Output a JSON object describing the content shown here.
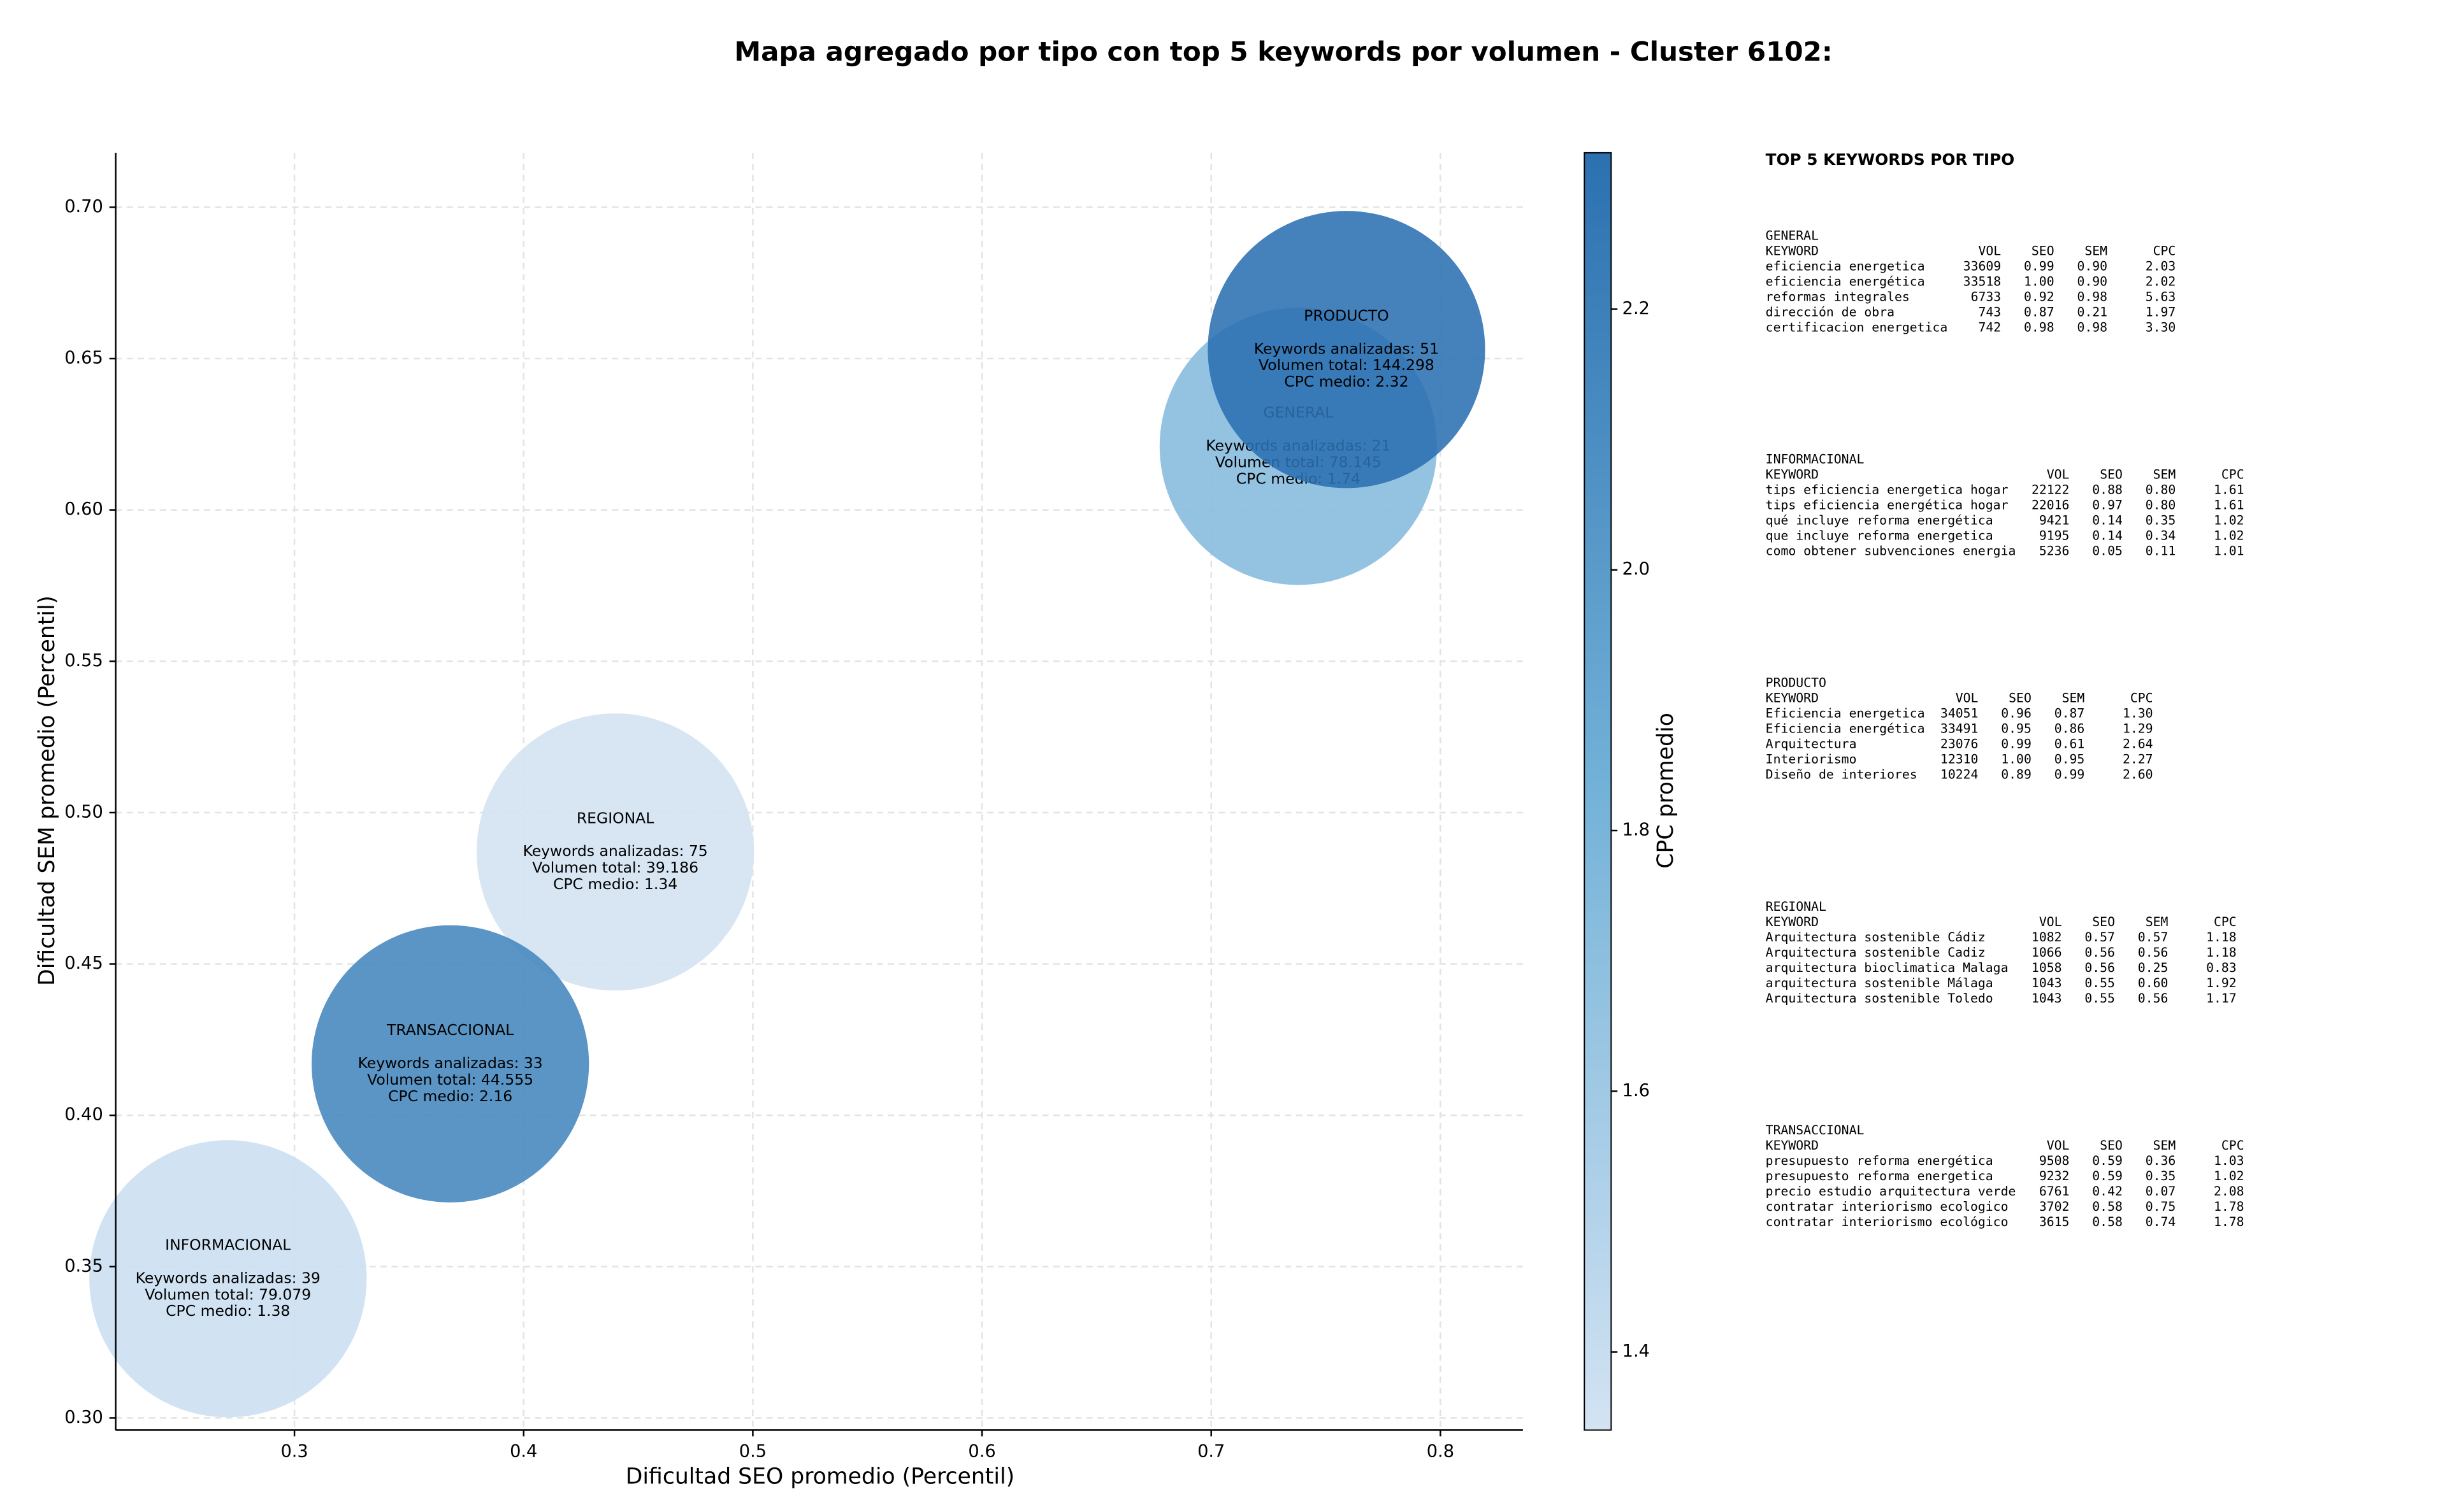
{
  "chart_data": {
    "type": "bubble",
    "title": "Mapa agregado por tipo con top 5 keywords por volumen - Cluster 6102:",
    "xlabel": "Dificultad SEO promedio (Percentil)",
    "ylabel": "Dificultad SEM promedio (Percentil)",
    "colorbar_label": "CPC promedio",
    "xlim": [
      0.222,
      0.836
    ],
    "ylim": [
      0.296,
      0.718
    ],
    "clim": [
      1.34,
      2.32
    ],
    "xticks": [
      0.3,
      0.4,
      0.5,
      0.6,
      0.7,
      0.8
    ],
    "yticks": [
      {
        "value": 0.3,
        "label": "0.30"
      },
      0.35,
      {
        "value": 0.4,
        "label": "0.40"
      },
      0.45,
      {
        "value": 0.5,
        "label": "0.50"
      },
      0.55,
      {
        "value": 0.6,
        "label": "0.60"
      },
      0.65,
      {
        "value": 0.7,
        "label": "0.70"
      }
    ],
    "cticks": [
      1.4,
      1.6,
      1.8,
      {
        "value": 2.0,
        "label": "2.0"
      },
      2.2
    ],
    "grid": true,
    "colormap": [
      "#d3e3f3",
      "#73b2d8",
      "#2b70b0"
    ],
    "bubbles": [
      {
        "name": "GENERAL",
        "x": 0.738,
        "y": 0.621,
        "cpc": 1.74,
        "lines": [
          "Keywords analizadas: 21",
          "Volumen total: 78.145",
          "CPC medio: 1.74"
        ]
      },
      {
        "name": "INFORMACIONAL",
        "x": 0.271,
        "y": 0.346,
        "cpc": 1.38,
        "lines": [
          "Keywords analizadas: 39",
          "Volumen total: 79.079",
          "CPC medio: 1.38"
        ]
      },
      {
        "name": "PRODUCTO",
        "x": 0.759,
        "y": 0.653,
        "cpc": 2.32,
        "lines": [
          "Keywords analizadas: 51",
          "Volumen total: 144.298",
          "CPC medio: 2.32"
        ]
      },
      {
        "name": "REGIONAL",
        "x": 0.44,
        "y": 0.487,
        "cpc": 1.34,
        "lines": [
          "Keywords analizadas: 75",
          "Volumen total: 39.186",
          "CPC medio: 1.34"
        ]
      },
      {
        "name": "TRANSACCIONAL",
        "x": 0.368,
        "y": 0.417,
        "cpc": 2.16,
        "lines": [
          "Keywords analizadas: 33",
          "Volumen total: 44.555",
          "CPC medio: 2.16"
        ]
      }
    ]
  },
  "side_panel": {
    "title": "TOP 5 KEYWORDS POR TIPO",
    "sections": [
      {
        "title": "GENERAL",
        "header": [
          "KEYWORD",
          "VOL",
          "SEO",
          "SEM",
          "CPC"
        ],
        "rows": [
          [
            "eficiencia energetica",
            "33609",
            "0.99",
            "0.90",
            "2.03"
          ],
          [
            "eficiencia energética",
            "33518",
            "1.00",
            "0.90",
            "2.02"
          ],
          [
            "reformas integrales",
            "6733",
            "0.92",
            "0.98",
            "5.63"
          ],
          [
            "dirección de obra",
            "743",
            "0.87",
            "0.21",
            "1.97"
          ],
          [
            "certificacion energetica",
            "742",
            "0.98",
            "0.98",
            "3.30"
          ]
        ]
      },
      {
        "title": "INFORMACIONAL",
        "header": [
          "KEYWORD",
          "VOL",
          "SEO",
          "SEM",
          "CPC"
        ],
        "rows": [
          [
            "tips eficiencia energetica hogar",
            "22122",
            "0.88",
            "0.80",
            "1.61"
          ],
          [
            "tips eficiencia energética hogar",
            "22016",
            "0.97",
            "0.80",
            "1.61"
          ],
          [
            "qué incluye reforma energética",
            "9421",
            "0.14",
            "0.35",
            "1.02"
          ],
          [
            "que incluye reforma energetica",
            "9195",
            "0.14",
            "0.34",
            "1.02"
          ],
          [
            "como obtener subvenciones energia",
            "5236",
            "0.05",
            "0.11",
            "1.01"
          ]
        ]
      },
      {
        "title": "PRODUCTO",
        "header": [
          "KEYWORD",
          "VOL",
          "SEO",
          "SEM",
          "CPC"
        ],
        "rows": [
          [
            "Eficiencia energetica",
            "34051",
            "0.96",
            "0.87",
            "1.30"
          ],
          [
            "Eficiencia energética",
            "33491",
            "0.95",
            "0.86",
            "1.29"
          ],
          [
            "Arquitectura",
            "23076",
            "0.99",
            "0.61",
            "2.64"
          ],
          [
            "Interiorismo",
            "12310",
            "1.00",
            "0.95",
            "2.27"
          ],
          [
            "Diseño de interiores",
            "10224",
            "0.89",
            "0.99",
            "2.60"
          ]
        ]
      },
      {
        "title": "REGIONAL",
        "header": [
          "KEYWORD",
          "VOL",
          "SEO",
          "SEM",
          "CPC"
        ],
        "rows": [
          [
            "Arquitectura sostenible Cádiz",
            "1082",
            "0.57",
            "0.57",
            "1.18"
          ],
          [
            "Arquitectura sostenible Cadiz",
            "1066",
            "0.56",
            "0.56",
            "1.18"
          ],
          [
            "arquitectura bioclimatica Malaga",
            "1058",
            "0.56",
            "0.25",
            "0.83"
          ],
          [
            "arquitectura sostenible Málaga",
            "1043",
            "0.55",
            "0.60",
            "1.92"
          ],
          [
            "Arquitectura sostenible Toledo",
            "1043",
            "0.55",
            "0.56",
            "1.17"
          ]
        ]
      },
      {
        "title": "TRANSACCIONAL",
        "header": [
          "KEYWORD",
          "VOL",
          "SEO",
          "SEM",
          "CPC"
        ],
        "rows": [
          [
            "presupuesto reforma energética",
            "9508",
            "0.59",
            "0.36",
            "1.03"
          ],
          [
            "presupuesto reforma energetica",
            "9232",
            "0.59",
            "0.35",
            "1.02"
          ],
          [
            "precio estudio arquitectura verde",
            "6761",
            "0.42",
            "0.07",
            "2.08"
          ],
          [
            "contratar interiorismo ecologico",
            "3702",
            "0.58",
            "0.75",
            "1.78"
          ],
          [
            "contratar interiorismo ecológico",
            "3615",
            "0.58",
            "0.74",
            "1.78"
          ]
        ]
      }
    ]
  }
}
